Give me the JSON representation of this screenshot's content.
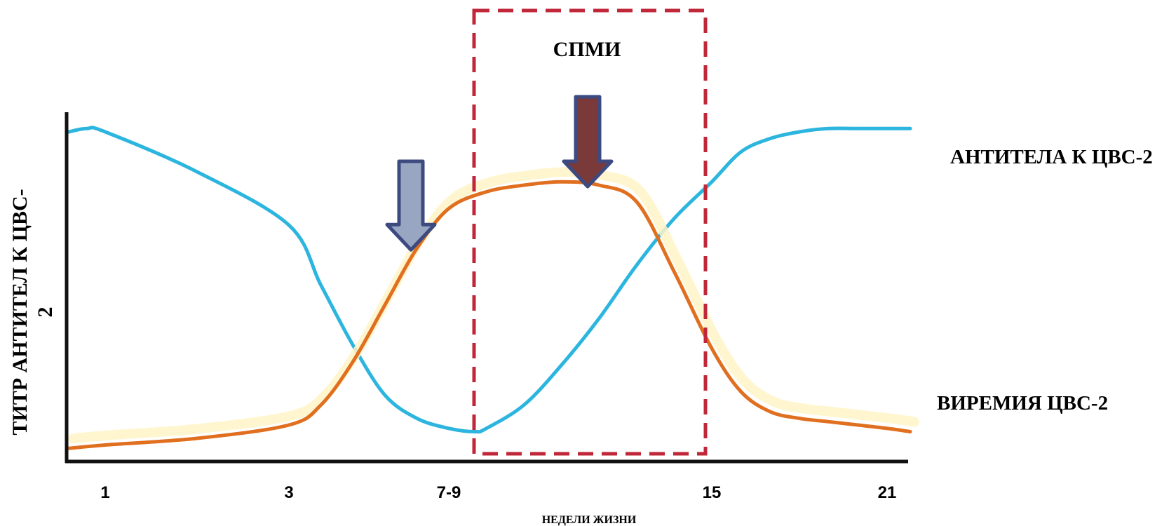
{
  "chart_data": {
    "type": "line",
    "xlabel": "НЕДЕЛИ ЖИЗНИ",
    "ylabel": [
      "ТИТР АНТИТЕЛ К ЦВС-",
      "2"
    ],
    "x_ticks": [
      "1",
      "3",
      "7-9",
      "15",
      "21"
    ],
    "x_range": [
      0,
      22
    ],
    "y_range": [
      0,
      100
    ],
    "grid": false,
    "annotation_box": {
      "label": "СПМИ",
      "x_start": 8,
      "x_end": 15
    },
    "arrows": [
      {
        "x": 6.8,
        "y_tip": 57,
        "color": "#98a6c2"
      },
      {
        "x": 11,
        "y_tip": 76,
        "color": "#7a3a3a"
      }
    ],
    "series": [
      {
        "name": "АНТИТЕЛА К ЦВС-2",
        "color": "#2cb5df",
        "points": [
          [
            0,
            92
          ],
          [
            0.5,
            93
          ],
          [
            1,
            92
          ],
          [
            2,
            80
          ],
          [
            3,
            64
          ],
          [
            4,
            46
          ],
          [
            5,
            28
          ],
          [
            6,
            13
          ],
          [
            7,
            6
          ],
          [
            8,
            3
          ],
          [
            8.7,
            2
          ],
          [
            9,
            3
          ],
          [
            10,
            10
          ],
          [
            11,
            22
          ],
          [
            12,
            36
          ],
          [
            13,
            52
          ],
          [
            14,
            66
          ],
          [
            15,
            77
          ],
          [
            16,
            86
          ],
          [
            17,
            90
          ],
          [
            18,
            92
          ],
          [
            19,
            93
          ],
          [
            20,
            93
          ],
          [
            21,
            93
          ],
          [
            21.6,
            93
          ]
        ]
      },
      {
        "name": "ВИРЕМИЯ ЦВС-2",
        "color": "#e06f1f",
        "points": [
          [
            0,
            -3
          ],
          [
            1,
            -2
          ],
          [
            2,
            0
          ],
          [
            3,
            4
          ],
          [
            4,
            10
          ],
          [
            5,
            23
          ],
          [
            6,
            40
          ],
          [
            7,
            57
          ],
          [
            8,
            69
          ],
          [
            9,
            74
          ],
          [
            10,
            76
          ],
          [
            11,
            77
          ],
          [
            12,
            76
          ],
          [
            13,
            71
          ],
          [
            14,
            50
          ],
          [
            15,
            27
          ],
          [
            16,
            14
          ],
          [
            17,
            8
          ],
          [
            18,
            6
          ],
          [
            19,
            5
          ],
          [
            20,
            4
          ],
          [
            21,
            3
          ],
          [
            21.6,
            2
          ]
        ]
      }
    ]
  }
}
